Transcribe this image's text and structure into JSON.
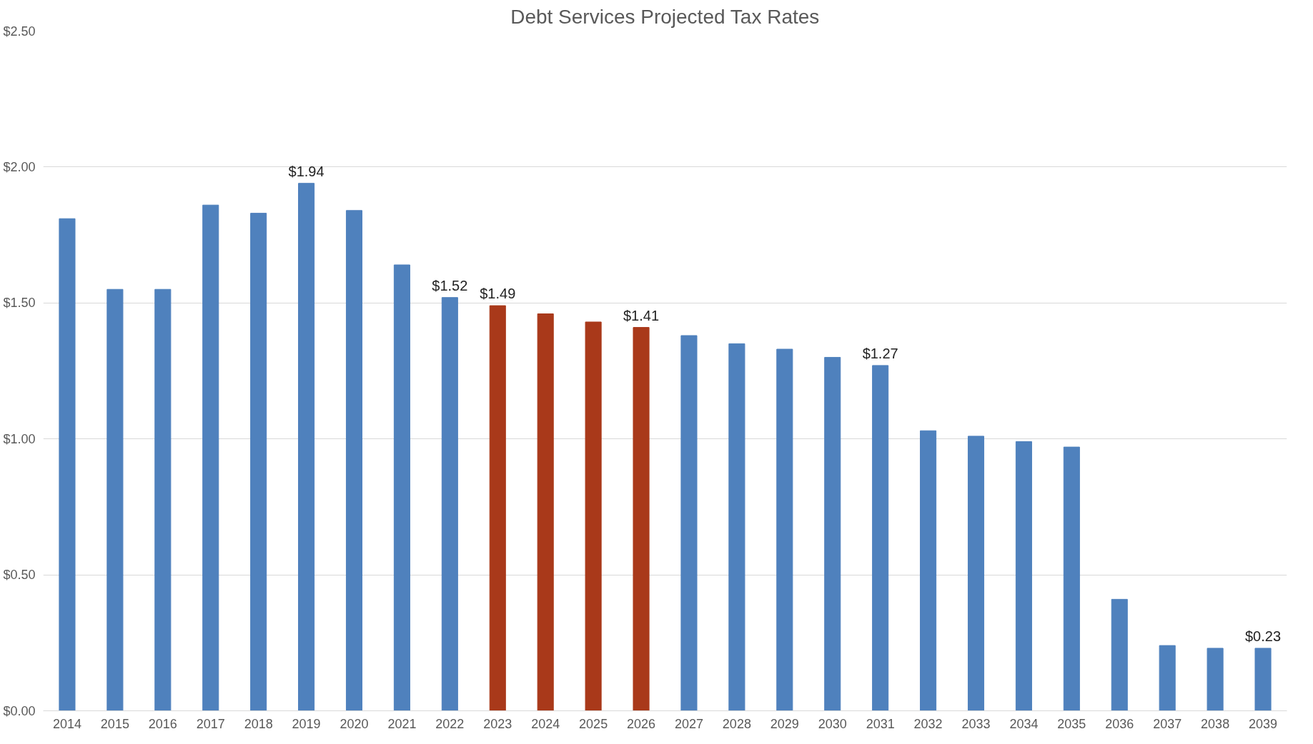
{
  "chart_data": {
    "type": "bar",
    "title": "Debt Services Projected Tax Rates",
    "categories": [
      "2014",
      "2015",
      "2016",
      "2017",
      "2018",
      "2019",
      "2020",
      "2021",
      "2022",
      "2023",
      "2024",
      "2025",
      "2026",
      "2027",
      "2028",
      "2029",
      "2030",
      "2031",
      "2032",
      "2033",
      "2034",
      "2035",
      "2036",
      "2037",
      "2038",
      "2039"
    ],
    "values": [
      1.81,
      1.55,
      1.55,
      1.86,
      1.83,
      1.94,
      1.84,
      1.64,
      1.52,
      1.49,
      1.46,
      1.43,
      1.41,
      1.38,
      1.35,
      1.33,
      1.3,
      1.27,
      1.03,
      1.01,
      0.99,
      0.97,
      0.41,
      0.24,
      0.23,
      0.23
    ],
    "colors": [
      "#4f81bd",
      "#4f81bd",
      "#4f81bd",
      "#4f81bd",
      "#4f81bd",
      "#4f81bd",
      "#4f81bd",
      "#4f81bd",
      "#4f81bd",
      "#a9391a",
      "#a9391a",
      "#a9391a",
      "#a9391a",
      "#4f81bd",
      "#4f81bd",
      "#4f81bd",
      "#4f81bd",
      "#4f81bd",
      "#4f81bd",
      "#4f81bd",
      "#4f81bd",
      "#4f81bd",
      "#4f81bd",
      "#4f81bd",
      "#4f81bd",
      "#4f81bd"
    ],
    "value_labels": [
      null,
      null,
      null,
      null,
      null,
      "$1.94",
      null,
      null,
      "$1.52",
      "$1.49",
      null,
      null,
      "$1.41",
      null,
      null,
      null,
      null,
      "$1.27",
      null,
      null,
      null,
      null,
      null,
      null,
      null,
      "$0.23"
    ],
    "ylim": [
      0,
      2.5
    ],
    "yticks": [
      {
        "value": 0,
        "label": "$0.00"
      },
      {
        "value": 0.5,
        "label": "$0.50"
      },
      {
        "value": 1,
        "label": "$1.00"
      },
      {
        "value": 1.5,
        "label": "$1.50"
      },
      {
        "value": 2,
        "label": "$2.00"
      },
      {
        "value": 2.5,
        "label": "$2.50"
      }
    ],
    "grid": "y"
  }
}
